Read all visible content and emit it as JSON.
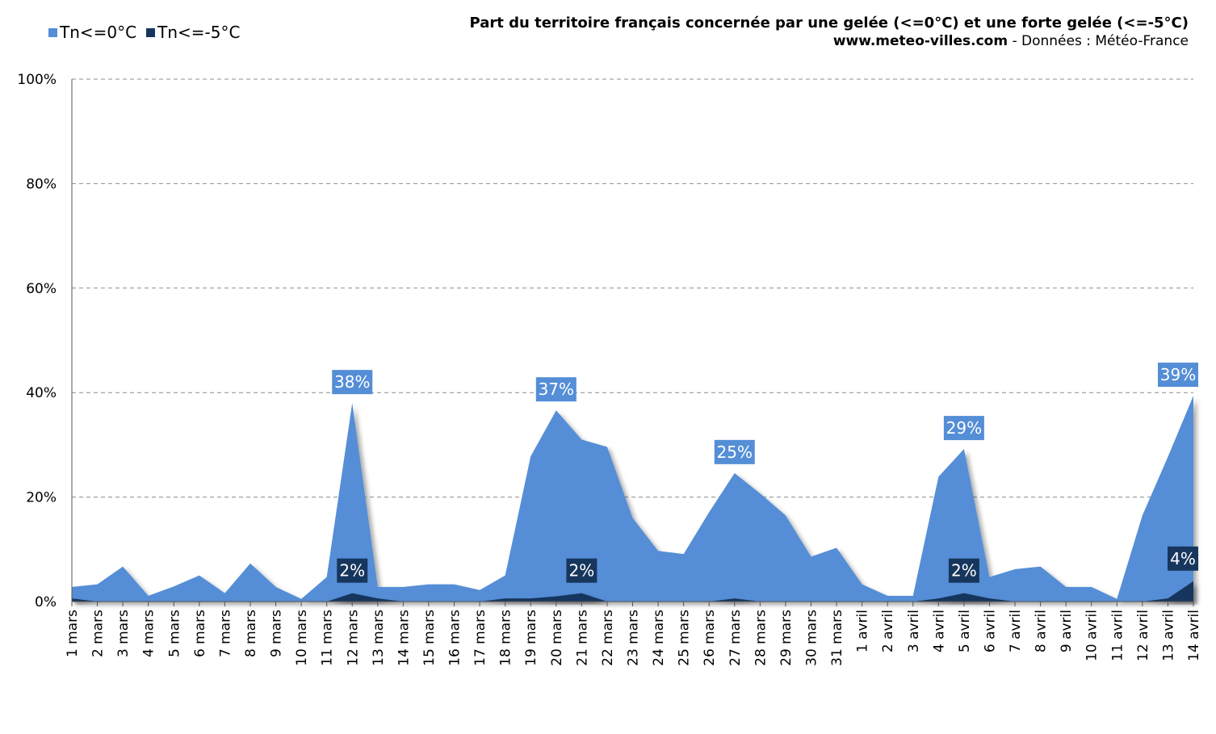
{
  "colors": {
    "tn0": "#548ed6",
    "tn5": "#17365d",
    "grid": "#8c8c8c",
    "axis": "#555555"
  },
  "header": {
    "title": "Part du territoire français concernée par une gelée (<=0°C) et une forte gelée (<=-5°C)",
    "site": "www.meteo-villes.com",
    "source": " - Données : Météo-France"
  },
  "legend": [
    {
      "label": "Tn<=0°C",
      "color": "#548ed6"
    },
    {
      "label": "Tn<=-5°C",
      "color": "#17365d"
    }
  ],
  "chart_data": {
    "type": "area",
    "categories": [
      "1 mars",
      "2 mars",
      "3 mars",
      "4 mars",
      "5 mars",
      "6 mars",
      "7 mars",
      "8 mars",
      "9 mars",
      "10 mars",
      "11 mars",
      "12 mars",
      "13 mars",
      "14 mars",
      "15 mars",
      "16 mars",
      "17 mars",
      "18 mars",
      "19 mars",
      "20 mars",
      "21 mars",
      "22 mars",
      "23 mars",
      "24 mars",
      "25 mars",
      "26 mars",
      "27 mars",
      "28 mars",
      "29 mars",
      "30 mars",
      "31 mars",
      "1 avril",
      "2 avril",
      "3 avril",
      "4 avril",
      "5 avril",
      "6 avril",
      "7 avril",
      "8 avril",
      "9 avril",
      "10 avril",
      "11 avril",
      "12 avril",
      "13 avril",
      "14 avril"
    ],
    "series": [
      {
        "name": "Tn<=0°C",
        "values": [
          2.8,
          3.3,
          6.7,
          1.1,
          2.9,
          5.0,
          1.6,
          7.3,
          2.8,
          0.5,
          4.7,
          38.0,
          2.8,
          2.8,
          3.3,
          3.3,
          2.2,
          5.0,
          27.8,
          36.6,
          31.0,
          29.6,
          16.0,
          9.7,
          9.1,
          17.1,
          24.6,
          20.7,
          16.5,
          8.6,
          10.3,
          3.3,
          1.1,
          1.1,
          23.9,
          29.2,
          4.7,
          6.2,
          6.7,
          2.8,
          2.8,
          0.5,
          16.5,
          27.7,
          39.4
        ]
      },
      {
        "name": "Tn<=-5°C",
        "values": [
          0.6,
          0,
          0,
          0,
          0,
          0,
          0,
          0,
          0,
          0,
          0,
          1.6,
          0.6,
          0,
          0,
          0,
          0,
          0.6,
          0.6,
          1.0,
          1.6,
          0,
          0,
          0,
          0,
          0,
          0.6,
          0,
          0,
          0,
          0,
          0,
          0,
          0,
          0.6,
          1.6,
          0.6,
          0,
          0,
          0,
          0,
          0,
          0,
          0.6,
          3.9
        ]
      }
    ],
    "data_labels": [
      {
        "series": 0,
        "index": 11,
        "text": "38%"
      },
      {
        "series": 0,
        "index": 19,
        "text": "37%"
      },
      {
        "series": 0,
        "index": 26,
        "text": "25%"
      },
      {
        "series": 0,
        "index": 35,
        "text": "29%"
      },
      {
        "series": 0,
        "index": 44,
        "text": "39%"
      },
      {
        "series": 1,
        "index": 11,
        "text": "2%"
      },
      {
        "series": 1,
        "index": 20,
        "text": "2%"
      },
      {
        "series": 1,
        "index": 35,
        "text": "2%"
      },
      {
        "series": 1,
        "index": 44,
        "text": "4%"
      }
    ],
    "yticks": [
      "0%",
      "20%",
      "40%",
      "60%",
      "80%",
      "100%"
    ],
    "ylim": [
      0,
      100
    ],
    "grid": true,
    "legend_position": "top-left"
  }
}
